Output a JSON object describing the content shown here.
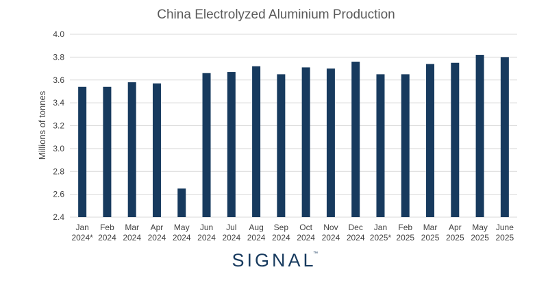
{
  "chart_data": {
    "type": "bar",
    "title": "China Electrolyzed Aluminium Production",
    "xlabel": "",
    "ylabel": "Millions of tonnes",
    "ylim": [
      2.4,
      4.0
    ],
    "yticks": [
      "2.4",
      "2.6",
      "2.8",
      "3.0",
      "3.2",
      "3.4",
      "3.6",
      "3.8",
      "4.0"
    ],
    "grid": true,
    "legend": "none",
    "categories": [
      {
        "month": "Jan",
        "year": "2024*"
      },
      {
        "month": "Feb",
        "year": "2024"
      },
      {
        "month": "Mar",
        "year": "2024"
      },
      {
        "month": "Apr",
        "year": "2024"
      },
      {
        "month": "May",
        "year": "2024"
      },
      {
        "month": "Jun",
        "year": "2024"
      },
      {
        "month": "Jul",
        "year": "2024"
      },
      {
        "month": "Aug",
        "year": "2024"
      },
      {
        "month": "Sep",
        "year": "2024"
      },
      {
        "month": "Oct",
        "year": "2024"
      },
      {
        "month": "Nov",
        "year": "2024"
      },
      {
        "month": "Dec",
        "year": "2024"
      },
      {
        "month": "Jan",
        "year": "2025*"
      },
      {
        "month": "Feb",
        "year": "2025"
      },
      {
        "month": "Mar",
        "year": "2025"
      },
      {
        "month": "Apr",
        "year": "2025"
      },
      {
        "month": "May",
        "year": "2025"
      },
      {
        "month": "June",
        "year": "2025"
      }
    ],
    "values": [
      3.54,
      3.54,
      3.58,
      3.57,
      2.65,
      3.66,
      3.67,
      3.72,
      3.65,
      3.71,
      3.7,
      3.76,
      3.65,
      3.65,
      3.74,
      3.75,
      3.82,
      3.8
    ],
    "colors": {
      "bar": "#173a5e",
      "grid": "#d9d9d9",
      "text": "#404040",
      "title": "#595959"
    }
  },
  "logo": {
    "text": "SIGNAL",
    "trademark": "™",
    "color": "#173a5e"
  }
}
